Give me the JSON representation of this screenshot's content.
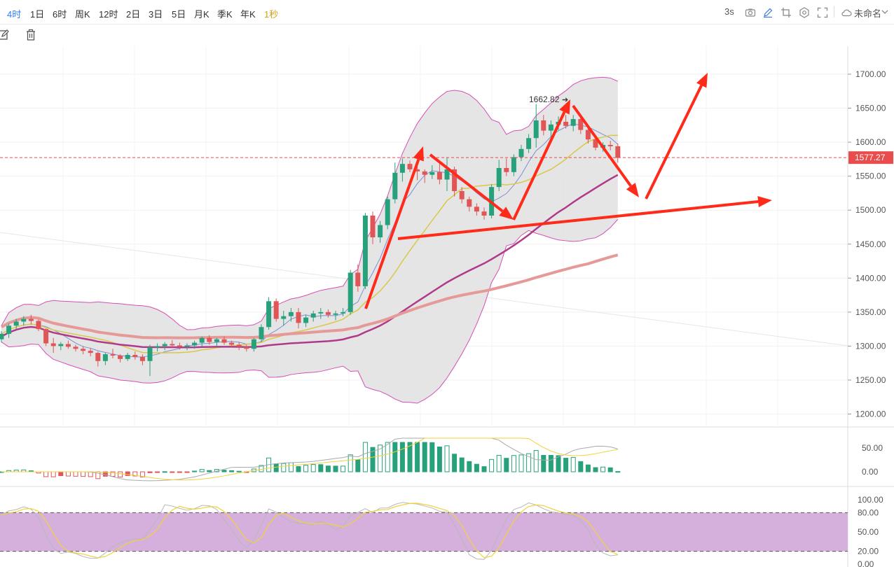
{
  "toolbar": {
    "timeframes": [
      {
        "label": "4时",
        "active": true
      },
      {
        "label": "1日",
        "active": false
      },
      {
        "label": "6时",
        "active": false
      },
      {
        "label": "周K",
        "active": false
      },
      {
        "label": "12时",
        "active": false
      },
      {
        "label": "2日",
        "active": false
      },
      {
        "label": "3日",
        "active": false
      },
      {
        "label": "5日",
        "active": false
      },
      {
        "label": "月K",
        "active": false
      },
      {
        "label": "季K",
        "active": false
      },
      {
        "label": "年K",
        "active": false
      },
      {
        "label": "1秒",
        "active": false
      }
    ],
    "refresh_interval": "3s",
    "layout_name": "未命名",
    "icons": [
      "camera-icon",
      "pen-icon",
      "crop-icon",
      "settings-icon",
      "fullscreen-icon",
      "cloud-icon",
      "chevron-down-icon"
    ]
  },
  "drawing_toolbar": {
    "icons": [
      "edit-icon",
      "trash-icon"
    ]
  },
  "price_axis": {
    "ticks": [
      "1700.00",
      "1650.00",
      "1600.00",
      "1550.00",
      "1500.00",
      "1450.00",
      "1400.00",
      "1350.00",
      "1300.00",
      "1250.00",
      "1200.00"
    ],
    "current_price": "1577.27",
    "current_price_color": "#e84c4c"
  },
  "annotations": {
    "high_label": "1662.82"
  },
  "macd_axis": {
    "ticks": [
      "50.00",
      "0.00"
    ]
  },
  "kdj_axis": {
    "ticks": [
      "100.00",
      "80.00",
      "50.00",
      "20.00",
      "0.00"
    ]
  },
  "colors": {
    "up": "#26a17b",
    "down": "#e05555",
    "arrow": "#ff2a1a",
    "band_fill": "#e2e2e2",
    "band_line": "#d64fb4",
    "ma_yellow": "#d9c84a",
    "ma_purple": "#b03a8a",
    "ma_pink": "#e59a98",
    "kdj_zone": "#d6b0dc"
  },
  "chart_data": {
    "type": "candlestick",
    "series": [
      {
        "name": "",
        "values": [
          [
            1310,
            1322,
            1305,
            1318
          ],
          [
            1318,
            1333,
            1312,
            1330
          ],
          [
            1330,
            1340,
            1325,
            1336
          ],
          [
            1336,
            1344,
            1330,
            1340
          ],
          [
            1340,
            1346,
            1332,
            1337
          ],
          [
            1337,
            1339,
            1322,
            1325
          ],
          [
            1325,
            1326,
            1300,
            1304
          ],
          [
            1304,
            1312,
            1290,
            1300
          ],
          [
            1300,
            1306,
            1294,
            1303
          ],
          [
            1303,
            1308,
            1296,
            1299
          ],
          [
            1299,
            1302,
            1292,
            1296
          ],
          [
            1296,
            1300,
            1288,
            1293
          ],
          [
            1293,
            1297,
            1285,
            1290
          ],
          [
            1290,
            1292,
            1270,
            1278
          ],
          [
            1278,
            1290,
            1272,
            1288
          ],
          [
            1288,
            1296,
            1282,
            1286
          ],
          [
            1286,
            1288,
            1276,
            1281
          ],
          [
            1281,
            1290,
            1278,
            1287
          ],
          [
            1287,
            1292,
            1280,
            1284
          ],
          [
            1284,
            1288,
            1272,
            1278
          ],
          [
            1278,
            1302,
            1256,
            1298
          ],
          [
            1298,
            1304,
            1292,
            1300
          ],
          [
            1300,
            1306,
            1294,
            1303
          ],
          [
            1303,
            1309,
            1297,
            1301
          ],
          [
            1301,
            1305,
            1295,
            1299
          ],
          [
            1299,
            1304,
            1294,
            1301
          ],
          [
            1301,
            1308,
            1296,
            1305
          ],
          [
            1305,
            1314,
            1300,
            1312
          ],
          [
            1312,
            1316,
            1302,
            1306
          ],
          [
            1306,
            1312,
            1300,
            1310
          ],
          [
            1310,
            1314,
            1302,
            1305
          ],
          [
            1305,
            1308,
            1298,
            1302
          ],
          [
            1302,
            1306,
            1294,
            1299
          ],
          [
            1299,
            1302,
            1292,
            1296
          ],
          [
            1296,
            1312,
            1292,
            1310
          ],
          [
            1310,
            1332,
            1306,
            1328
          ],
          [
            1328,
            1372,
            1324,
            1366
          ],
          [
            1366,
            1370,
            1336,
            1340
          ],
          [
            1340,
            1352,
            1330,
            1344
          ],
          [
            1344,
            1356,
            1336,
            1350
          ],
          [
            1350,
            1356,
            1326,
            1334
          ],
          [
            1334,
            1346,
            1328,
            1342
          ],
          [
            1342,
            1352,
            1336,
            1348
          ],
          [
            1348,
            1356,
            1340,
            1350
          ],
          [
            1350,
            1354,
            1342,
            1346
          ],
          [
            1346,
            1352,
            1338,
            1348
          ],
          [
            1348,
            1356,
            1344,
            1350
          ],
          [
            1350,
            1412,
            1346,
            1408
          ],
          [
            1408,
            1420,
            1380,
            1388
          ],
          [
            1388,
            1496,
            1384,
            1492
          ],
          [
            1492,
            1498,
            1450,
            1460
          ],
          [
            1460,
            1484,
            1452,
            1478
          ],
          [
            1478,
            1520,
            1472,
            1516
          ],
          [
            1516,
            1570,
            1510,
            1555
          ],
          [
            1555,
            1576,
            1542,
            1568
          ],
          [
            1568,
            1573,
            1556,
            1560
          ],
          [
            1560,
            1568,
            1544,
            1557
          ],
          [
            1557,
            1560,
            1540,
            1552
          ],
          [
            1552,
            1566,
            1546,
            1556
          ],
          [
            1556,
            1568,
            1538,
            1545
          ],
          [
            1545,
            1578,
            1528,
            1560
          ],
          [
            1560,
            1564,
            1520,
            1528
          ],
          [
            1528,
            1534,
            1510,
            1516
          ],
          [
            1516,
            1520,
            1498,
            1505
          ],
          [
            1505,
            1510,
            1492,
            1498
          ],
          [
            1498,
            1504,
            1486,
            1492
          ],
          [
            1492,
            1538,
            1488,
            1534
          ],
          [
            1534,
            1574,
            1528,
            1562
          ],
          [
            1562,
            1576,
            1550,
            1556
          ],
          [
            1556,
            1582,
            1550,
            1578
          ],
          [
            1578,
            1596,
            1572,
            1590
          ],
          [
            1590,
            1612,
            1584,
            1606
          ],
          [
            1606,
            1656,
            1592,
            1632
          ],
          [
            1632,
            1640,
            1610,
            1617
          ],
          [
            1617,
            1632,
            1608,
            1626
          ],
          [
            1626,
            1638,
            1618,
            1630
          ],
          [
            1630,
            1640,
            1620,
            1624
          ],
          [
            1624,
            1640,
            1616,
            1634
          ],
          [
            1634,
            1640,
            1612,
            1618
          ],
          [
            1618,
            1624,
            1598,
            1604
          ],
          [
            1604,
            1610,
            1588,
            1592
          ],
          [
            1592,
            1600,
            1586,
            1596
          ],
          [
            1596,
            1602,
            1588,
            1594
          ],
          [
            1594,
            1598,
            1570,
            1577
          ]
        ]
      }
    ]
  }
}
